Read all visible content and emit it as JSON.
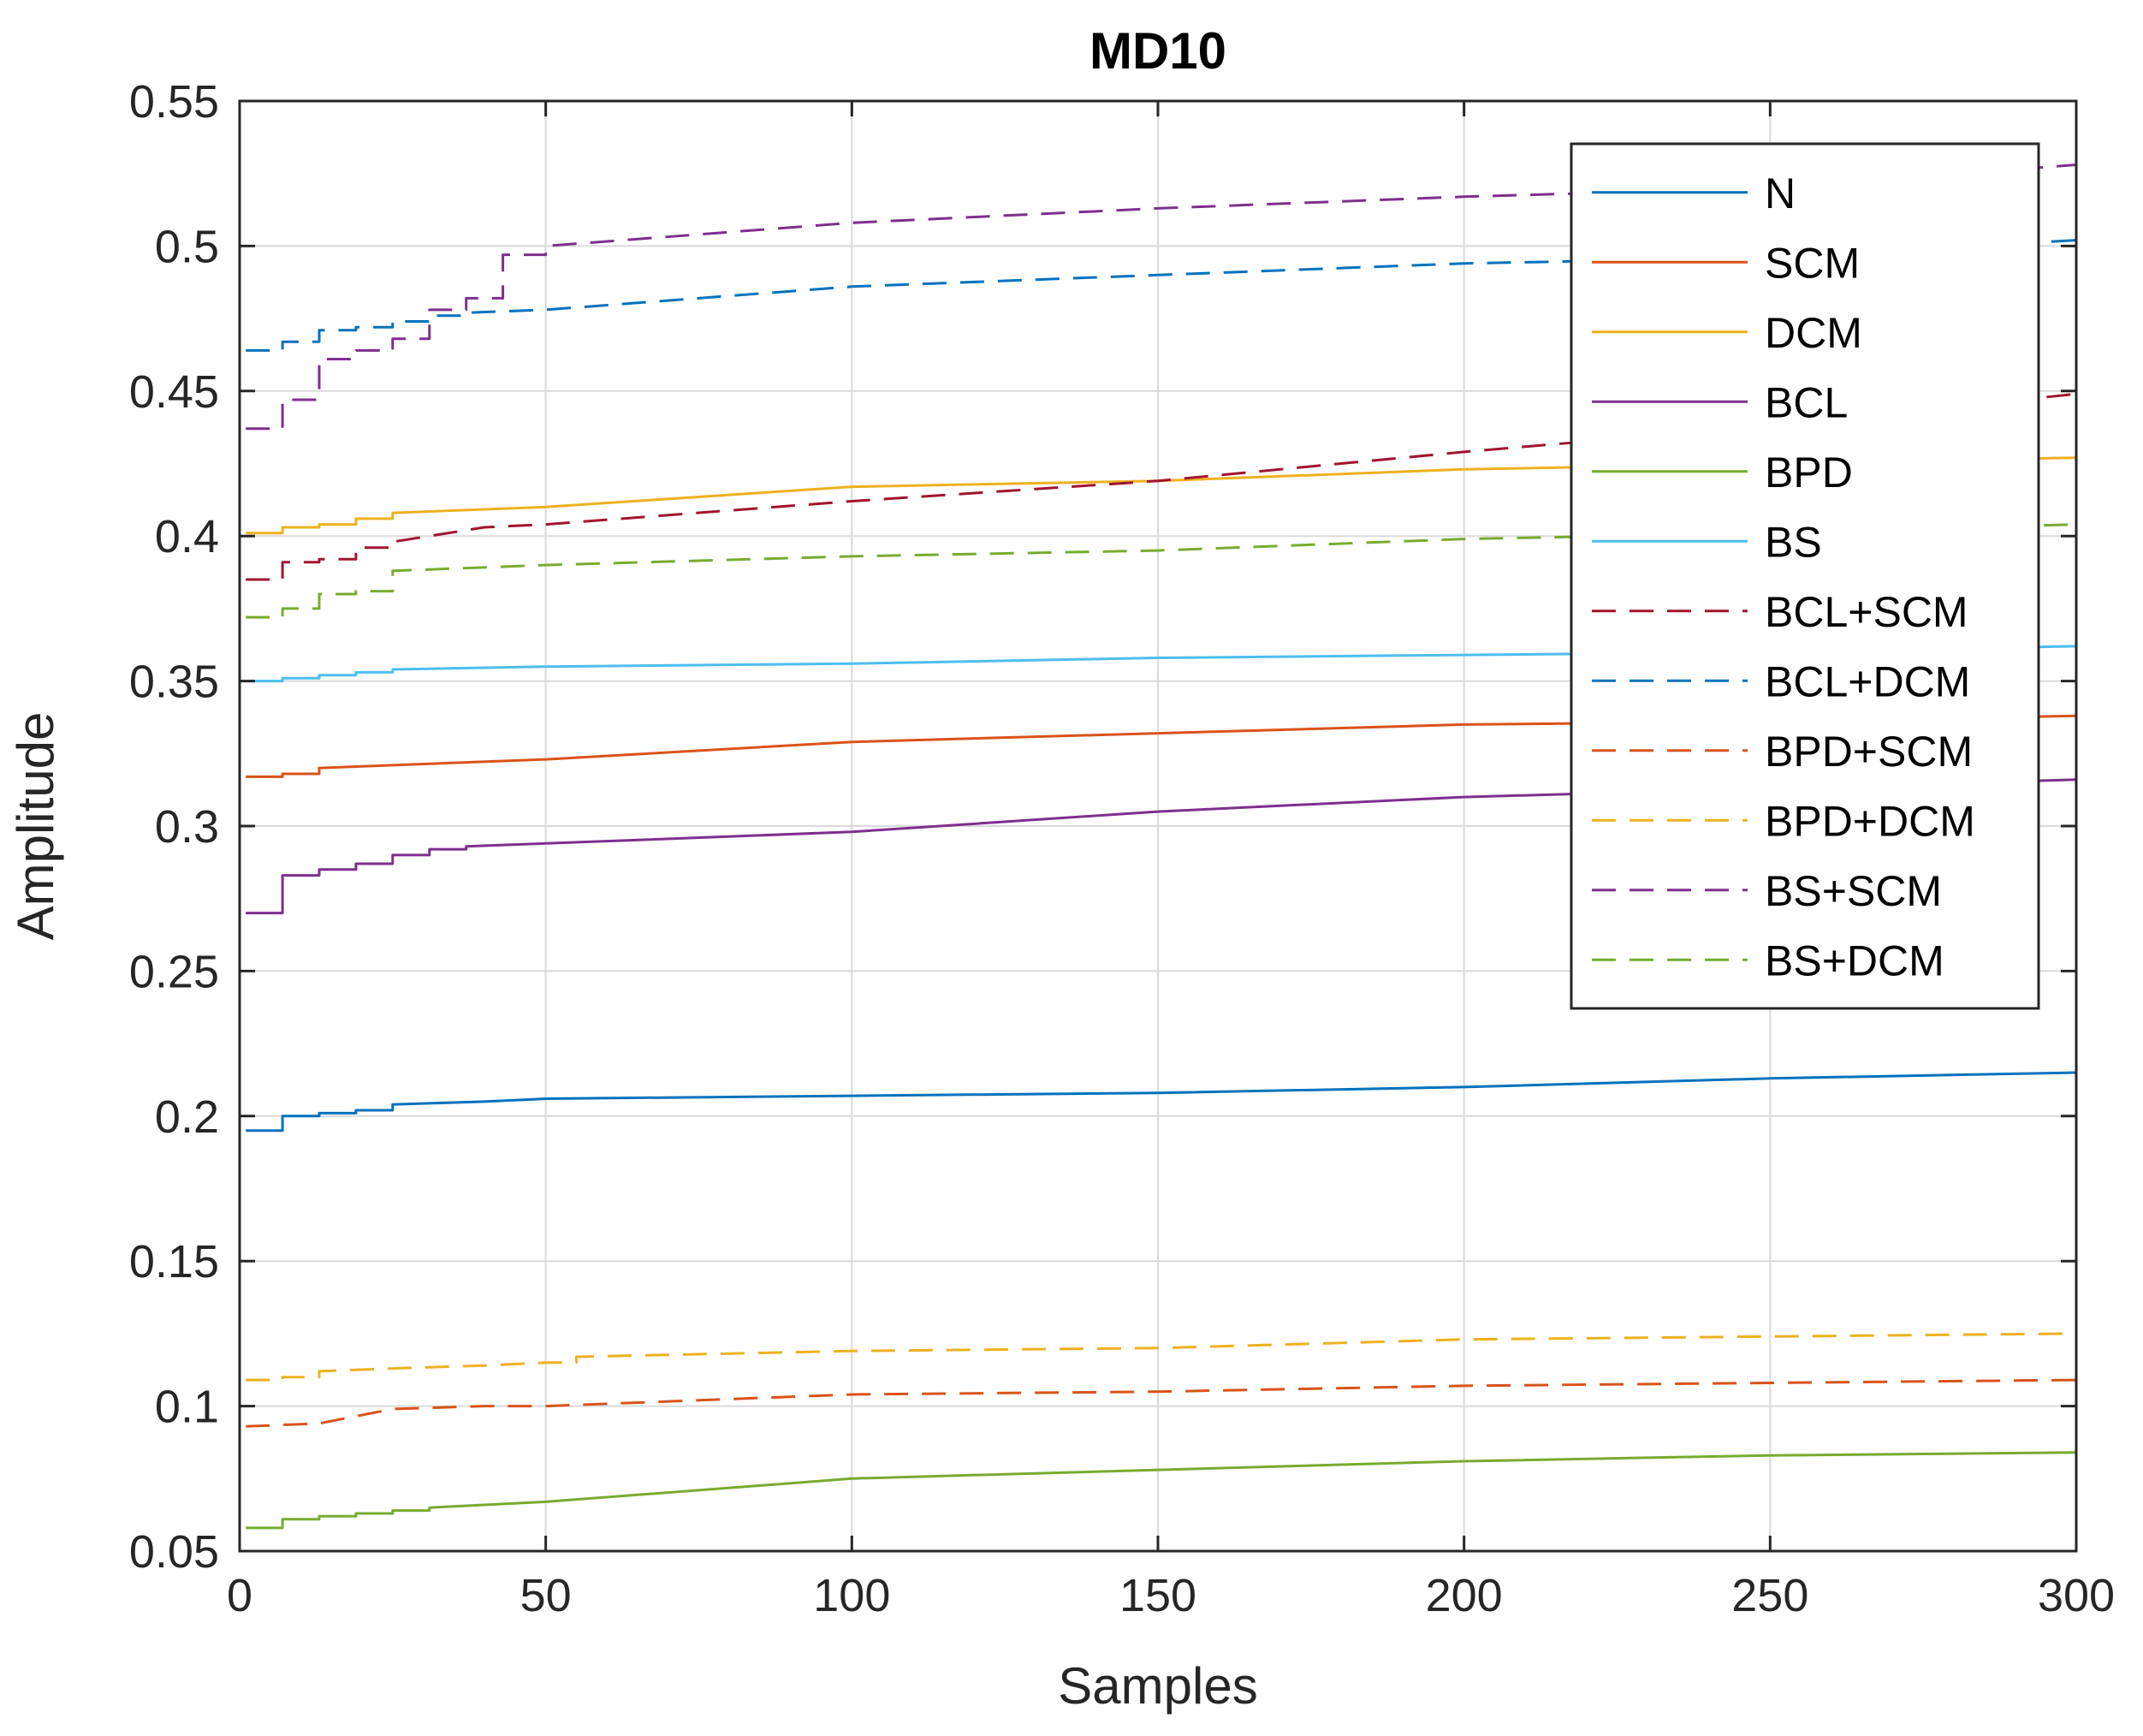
{
  "chart_data": {
    "type": "line",
    "title": "MD10",
    "xlabel": "Samples",
    "ylabel": "Amplitude",
    "xlim": [
      0,
      300
    ],
    "ylim": [
      0.05,
      0.55
    ],
    "xticks": [
      0,
      50,
      100,
      150,
      200,
      250,
      300
    ],
    "xtick_labels": [
      "0",
      "50",
      "100",
      "150",
      "200",
      "250",
      "300"
    ],
    "yticks": [
      0.05,
      0.1,
      0.15,
      0.2,
      0.25,
      0.3,
      0.35,
      0.4,
      0.45,
      0.5,
      0.55
    ],
    "ytick_labels": [
      "0.05",
      "0.1",
      "0.15",
      "0.2",
      "0.25",
      "0.3",
      "0.35",
      "0.4",
      "0.45",
      "0.5",
      "0.55"
    ],
    "grid": true,
    "legend_position": "top-right",
    "series": [
      {
        "name": "N",
        "color": "#0072BD",
        "style": "solid",
        "x": [
          1,
          7,
          13,
          19,
          25,
          40,
          50,
          100,
          150,
          200,
          250,
          300
        ],
        "y": [
          0.195,
          0.2,
          0.201,
          0.202,
          0.204,
          0.205,
          0.206,
          0.207,
          0.208,
          0.21,
          0.213,
          0.215
        ]
      },
      {
        "name": "SCM",
        "color": "#D95319",
        "style": "solid",
        "x": [
          1,
          7,
          13,
          25,
          50,
          100,
          150,
          200,
          250,
          300
        ],
        "y": [
          0.317,
          0.318,
          0.32,
          0.321,
          0.323,
          0.329,
          0.332,
          0.335,
          0.336,
          0.338
        ]
      },
      {
        "name": "DCM",
        "color": "#EDB120",
        "style": "solid",
        "x": [
          1,
          7,
          13,
          19,
          25,
          50,
          100,
          150,
          200,
          250,
          300
        ],
        "y": [
          0.401,
          0.403,
          0.404,
          0.406,
          0.408,
          0.41,
          0.417,
          0.419,
          0.423,
          0.425,
          0.427
        ]
      },
      {
        "name": "BCL",
        "color": "#7E2F8E",
        "style": "solid",
        "x": [
          1,
          7,
          13,
          19,
          25,
          31,
          37,
          50,
          100,
          150,
          200,
          250,
          300
        ],
        "y": [
          0.27,
          0.283,
          0.285,
          0.287,
          0.29,
          0.292,
          0.293,
          0.294,
          0.298,
          0.305,
          0.31,
          0.313,
          0.316
        ]
      },
      {
        "name": "BPD",
        "color": "#77AC30",
        "style": "solid",
        "x": [
          1,
          7,
          13,
          19,
          25,
          31,
          50,
          100,
          150,
          200,
          250,
          300
        ],
        "y": [
          0.058,
          0.061,
          0.062,
          0.063,
          0.064,
          0.065,
          0.067,
          0.075,
          0.078,
          0.081,
          0.083,
          0.084
        ]
      },
      {
        "name": "BS",
        "color": "#4DBEEE",
        "style": "solid",
        "x": [
          1,
          7,
          13,
          19,
          25,
          50,
          100,
          150,
          200,
          250,
          300
        ],
        "y": [
          0.35,
          0.351,
          0.352,
          0.353,
          0.354,
          0.355,
          0.356,
          0.358,
          0.359,
          0.36,
          0.362
        ]
      },
      {
        "name": "BCL+SCM",
        "color": "#A2142F",
        "style": "dashed",
        "x": [
          1,
          7,
          13,
          19,
          25,
          40,
          50,
          100,
          150,
          200,
          250,
          300
        ],
        "y": [
          0.385,
          0.391,
          0.392,
          0.396,
          0.398,
          0.403,
          0.404,
          0.412,
          0.419,
          0.429,
          0.438,
          0.449
        ]
      },
      {
        "name": "BCL+DCM",
        "color": "#0072BD",
        "style": "dashed",
        "x": [
          1,
          7,
          13,
          19,
          25,
          31,
          37,
          50,
          100,
          150,
          200,
          250,
          300
        ],
        "y": [
          0.464,
          0.467,
          0.471,
          0.472,
          0.474,
          0.476,
          0.477,
          0.478,
          0.486,
          0.49,
          0.494,
          0.496,
          0.502
        ]
      },
      {
        "name": "BPD+SCM",
        "color": "#D95319",
        "style": "dashed",
        "x": [
          1,
          13,
          25,
          40,
          50,
          100,
          150,
          200,
          250,
          300
        ],
        "y": [
          0.093,
          0.094,
          0.099,
          0.1,
          0.1,
          0.104,
          0.105,
          0.107,
          0.108,
          0.109
        ]
      },
      {
        "name": "BPD+DCM",
        "color": "#EDB120",
        "style": "dashed",
        "x": [
          1,
          7,
          13,
          25,
          40,
          50,
          55,
          100,
          150,
          200,
          250,
          300
        ],
        "y": [
          0.109,
          0.11,
          0.112,
          0.113,
          0.114,
          0.115,
          0.117,
          0.119,
          0.12,
          0.123,
          0.124,
          0.125
        ]
      },
      {
        "name": "BS+SCM",
        "color": "#7E2F8E",
        "style": "dashed",
        "x": [
          1,
          7,
          13,
          19,
          25,
          31,
          37,
          43,
          50,
          100,
          150,
          200,
          250,
          300
        ],
        "y": [
          0.437,
          0.447,
          0.461,
          0.464,
          0.468,
          0.478,
          0.482,
          0.497,
          0.5,
          0.508,
          0.513,
          0.517,
          0.52,
          0.528
        ]
      },
      {
        "name": "BS+DCM",
        "color": "#77AC30",
        "style": "dashed",
        "x": [
          1,
          7,
          13,
          19,
          25,
          50,
          100,
          150,
          200,
          250,
          300
        ],
        "y": [
          0.372,
          0.375,
          0.38,
          0.381,
          0.388,
          0.39,
          0.393,
          0.395,
          0.399,
          0.401,
          0.404
        ]
      }
    ]
  }
}
